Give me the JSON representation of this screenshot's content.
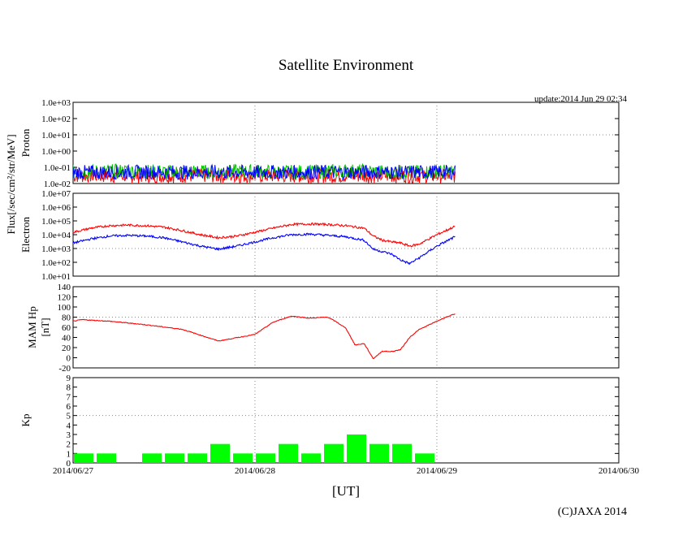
{
  "title": "Satellite Environment",
  "update_text": "update:2014 Jun 29 02:34",
  "copyright": "(C)JAXA 2014",
  "xlabel": "[UT]",
  "flux_unit_label": "Flux[/sec/cm²/str/MeV]",
  "chart_data": [
    {
      "type": "line",
      "name": "proton",
      "ylabel": "Proton",
      "yscale": "log",
      "ylim": [
        0.01,
        1000
      ],
      "yticks": [
        "1.0e-02",
        "1.0e-01",
        "1.0e+00",
        "1.0e+01",
        "1.0e+02",
        "1.0e+03"
      ],
      "ytick_values": [
        0.01,
        0.1,
        1,
        10,
        100,
        1000
      ],
      "grid_y": [
        10
      ],
      "series": [
        {
          "name": "proton-red",
          "color": "#ff0000",
          "x": [
            0,
            2.1
          ],
          "values": [
            0.03,
            0.03
          ]
        },
        {
          "name": "proton-green",
          "color": "#00c000",
          "x": [
            0,
            0.3,
            0.6,
            0.9,
            1.2,
            1.5,
            1.8,
            2.1
          ],
          "values": [
            0.05,
            0.06,
            0.05,
            0.055,
            0.05,
            0.06,
            0.05,
            0.055
          ]
        },
        {
          "name": "proton-blue",
          "color": "#0000ff",
          "x": [
            0,
            2.1
          ],
          "values": [
            0.05,
            0.05
          ]
        }
      ]
    },
    {
      "type": "line",
      "name": "electron",
      "ylabel": "Electron",
      "yscale": "log",
      "ylim": [
        10,
        10000000
      ],
      "yticks": [
        "1.0e+01",
        "1.0e+02",
        "1.0e+03",
        "1.0e+04",
        "1.0e+05",
        "1.0e+06",
        "1.0e+07"
      ],
      "ytick_values": [
        10,
        100,
        1000,
        10000,
        100000,
        1000000,
        10000000
      ],
      "grid_y": [
        1000
      ],
      "series": [
        {
          "name": "electron-red",
          "color": "#ff0000",
          "x": [
            0,
            0.1,
            0.2,
            0.3,
            0.4,
            0.5,
            0.6,
            0.7,
            0.8,
            0.9,
            1.0,
            1.1,
            1.2,
            1.3,
            1.4,
            1.5,
            1.6,
            1.65,
            1.7,
            1.75,
            1.8,
            1.85,
            1.9,
            2.0,
            2.1
          ],
          "values": [
            15000,
            30000,
            45000,
            50000,
            45000,
            35000,
            20000,
            10000,
            6000,
            8000,
            15000,
            30000,
            55000,
            60000,
            55000,
            45000,
            30000,
            8000,
            4000,
            3000,
            2500,
            1500,
            2000,
            10000,
            40000
          ]
        },
        {
          "name": "electron-blue",
          "color": "#0000ff",
          "x": [
            0,
            0.1,
            0.2,
            0.3,
            0.4,
            0.5,
            0.6,
            0.7,
            0.8,
            0.9,
            1.0,
            1.1,
            1.2,
            1.3,
            1.4,
            1.5,
            1.6,
            1.65,
            1.7,
            1.75,
            1.8,
            1.85,
            1.9,
            2.0,
            2.1
          ],
          "values": [
            2500,
            5000,
            8000,
            9000,
            8000,
            6000,
            3000,
            1500,
            900,
            1500,
            3000,
            6000,
            10000,
            11000,
            9000,
            7000,
            4000,
            900,
            600,
            400,
            150,
            80,
            200,
            1500,
            7000
          ]
        }
      ]
    },
    {
      "type": "line",
      "name": "mam-hp",
      "ylabel": "MAM Hp",
      "ylabel2": "[nT]",
      "ylim": [
        -20,
        140
      ],
      "yticks": [
        "-20",
        "0",
        "20",
        "40",
        "60",
        "80",
        "100",
        "120",
        "140"
      ],
      "ytick_values": [
        -20,
        0,
        20,
        40,
        60,
        80,
        100,
        120,
        140
      ],
      "grid_y": [
        80
      ],
      "series": [
        {
          "name": "hp",
          "color": "#ff0000",
          "x": [
            0,
            0.05,
            0.2,
            0.4,
            0.6,
            0.8,
            1.0,
            1.1,
            1.2,
            1.3,
            1.4,
            1.45,
            1.5,
            1.55,
            1.6,
            1.65,
            1.7,
            1.75,
            1.8,
            1.85,
            1.9,
            2.0,
            2.05,
            2.1
          ],
          "values": [
            72,
            75,
            72,
            65,
            56,
            33,
            46,
            70,
            82,
            78,
            80,
            70,
            58,
            25,
            28,
            -2,
            13,
            12,
            16,
            40,
            55,
            72,
            80,
            86
          ]
        }
      ]
    },
    {
      "type": "bar",
      "name": "kp",
      "ylabel": "Kp",
      "ylim": [
        0,
        9
      ],
      "yticks": [
        "0",
        "1",
        "2",
        "3",
        "4",
        "5",
        "6",
        "7",
        "8",
        "9"
      ],
      "ytick_values": [
        0,
        1,
        2,
        3,
        4,
        5,
        6,
        7,
        8,
        9
      ],
      "grid_y": [
        5
      ],
      "bar_color": "#00ff00",
      "bar_width_days": 0.125,
      "x": [
        0,
        0.125,
        0.25,
        0.375,
        0.5,
        0.625,
        0.75,
        0.875,
        1.0,
        1.125,
        1.25,
        1.375,
        1.5,
        1.625,
        1.75,
        1.875,
        2.0
      ],
      "values": [
        1,
        1,
        0,
        1,
        1,
        1,
        2,
        1,
        1,
        2,
        1,
        2,
        3,
        2,
        2,
        1,
        0
      ]
    }
  ],
  "x_axis": {
    "xlim_days": [
      0,
      3
    ],
    "ticks": [
      "2014/06/27",
      "2014/06/28",
      "2014/06/29",
      "2014/06/30"
    ],
    "tick_days": [
      0,
      1,
      2,
      3
    ]
  }
}
